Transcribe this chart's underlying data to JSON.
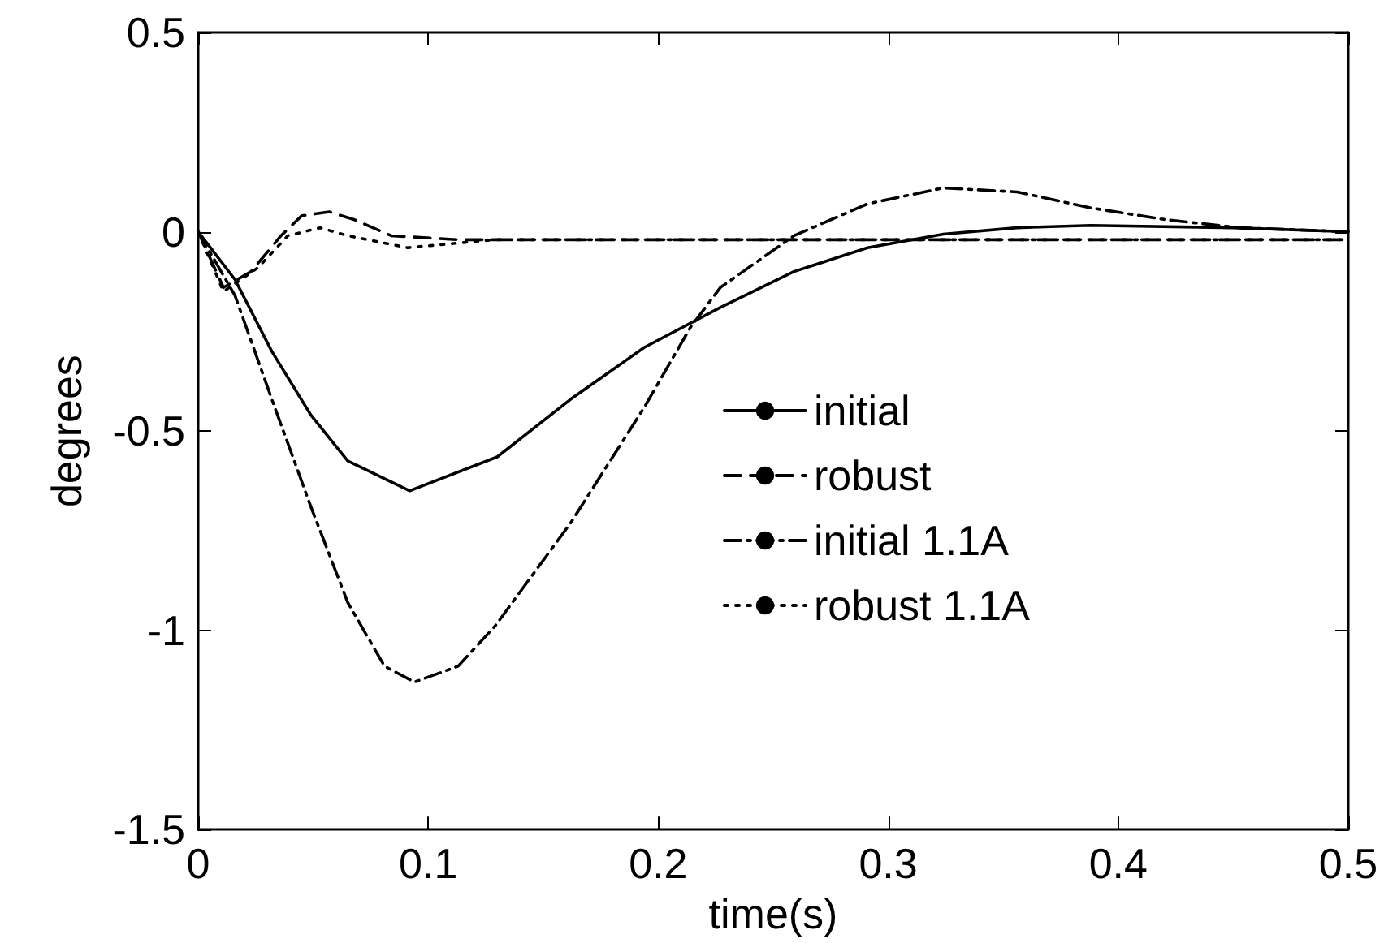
{
  "chart_data": {
    "type": "line",
    "xlabel": "time(s)",
    "ylabel": "degrees",
    "xlim": [
      0,
      0.5
    ],
    "xticks": [
      0,
      0.1,
      0.2,
      0.3,
      0.4,
      0.5
    ],
    "ylim": [
      -1.5,
      0.5
    ],
    "yticks": [
      -1.5,
      -1,
      -0.5,
      0,
      0.5
    ],
    "grid": false,
    "legend": "right",
    "marker": "none",
    "series": [
      {
        "name": "initial",
        "color": "#000000",
        "line_style": "solid",
        "x": [
          0,
          0.016,
          0.032,
          0.049,
          0.065,
          0.092,
          0.13,
          0.162,
          0.194,
          0.227,
          0.259,
          0.291,
          0.324,
          0.356,
          0.388,
          0.45,
          0.5
        ],
        "values": [
          0,
          -0.12,
          -0.3,
          -0.46,
          -0.575,
          -0.65,
          -0.565,
          -0.42,
          -0.29,
          -0.19,
          -0.1,
          -0.04,
          -0.006,
          0.01,
          0.016,
          0.01,
          0
        ]
      },
      {
        "name": "robust",
        "color": "#000000",
        "line_style": "dashed",
        "x": [
          0,
          0.011,
          0.023,
          0.036,
          0.045,
          0.057,
          0.068,
          0.084,
          0.113,
          0.2,
          0.3,
          0.4,
          0.5
        ],
        "values": [
          0,
          -0.14,
          -0.1,
          -0.01,
          0.04,
          0.05,
          0.03,
          -0.01,
          -0.02,
          -0.02,
          -0.02,
          -0.02,
          -0.02
        ]
      },
      {
        "name": "initial 1.1A",
        "color": "#000000",
        "line_style": "dashdot",
        "x": [
          0,
          0.016,
          0.032,
          0.049,
          0.065,
          0.081,
          0.094,
          0.113,
          0.129,
          0.162,
          0.194,
          0.214,
          0.227,
          0.259,
          0.291,
          0.324,
          0.356,
          0.388,
          0.421,
          0.453,
          0.5
        ],
        "values": [
          0,
          -0.16,
          -0.42,
          -0.69,
          -0.93,
          -1.09,
          -1.13,
          -1.09,
          -0.99,
          -0.73,
          -0.44,
          -0.24,
          -0.14,
          -0.01,
          0.07,
          0.11,
          0.1,
          0.06,
          0.03,
          0.01,
          0
        ]
      },
      {
        "name": "robust 1.1A",
        "color": "#000000",
        "line_style": "dotted",
        "x": [
          0,
          0.011,
          0.026,
          0.039,
          0.053,
          0.065,
          0.091,
          0.129,
          0.2,
          0.3,
          0.4,
          0.5
        ],
        "values": [
          0,
          -0.15,
          -0.09,
          -0.01,
          0.01,
          -0.01,
          -0.04,
          -0.02,
          -0.02,
          -0.02,
          -0.02,
          -0.02
        ]
      }
    ]
  }
}
